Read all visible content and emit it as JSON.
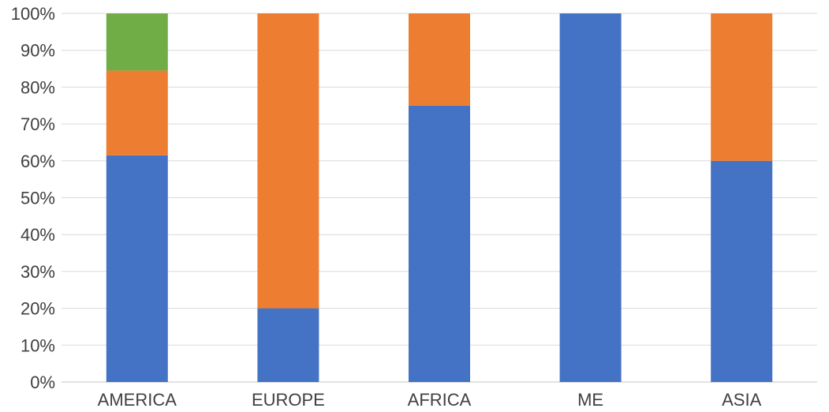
{
  "chart_data": {
    "type": "bar",
    "stacked": true,
    "percent_stacked": true,
    "categories": [
      "AMERICA",
      "EUROPE",
      "AFRICA",
      "ME",
      "ASIA"
    ],
    "series": [
      {
        "color": "#4472C4",
        "values": [
          61.5,
          20,
          75,
          100,
          60
        ]
      },
      {
        "color": "#ED7D31",
        "values": [
          23,
          80,
          25,
          0,
          40
        ]
      },
      {
        "color": "#70AD47",
        "values": [
          15.5,
          0,
          0,
          0,
          0
        ]
      }
    ],
    "ylim": [
      0,
      100
    ],
    "yticks": [
      "0%",
      "10%",
      "20%",
      "30%",
      "40%",
      "50%",
      "60%",
      "70%",
      "80%",
      "90%",
      "100%"
    ],
    "title": "",
    "xlabel": "",
    "ylabel": "",
    "grid": true,
    "legend": "none"
  }
}
